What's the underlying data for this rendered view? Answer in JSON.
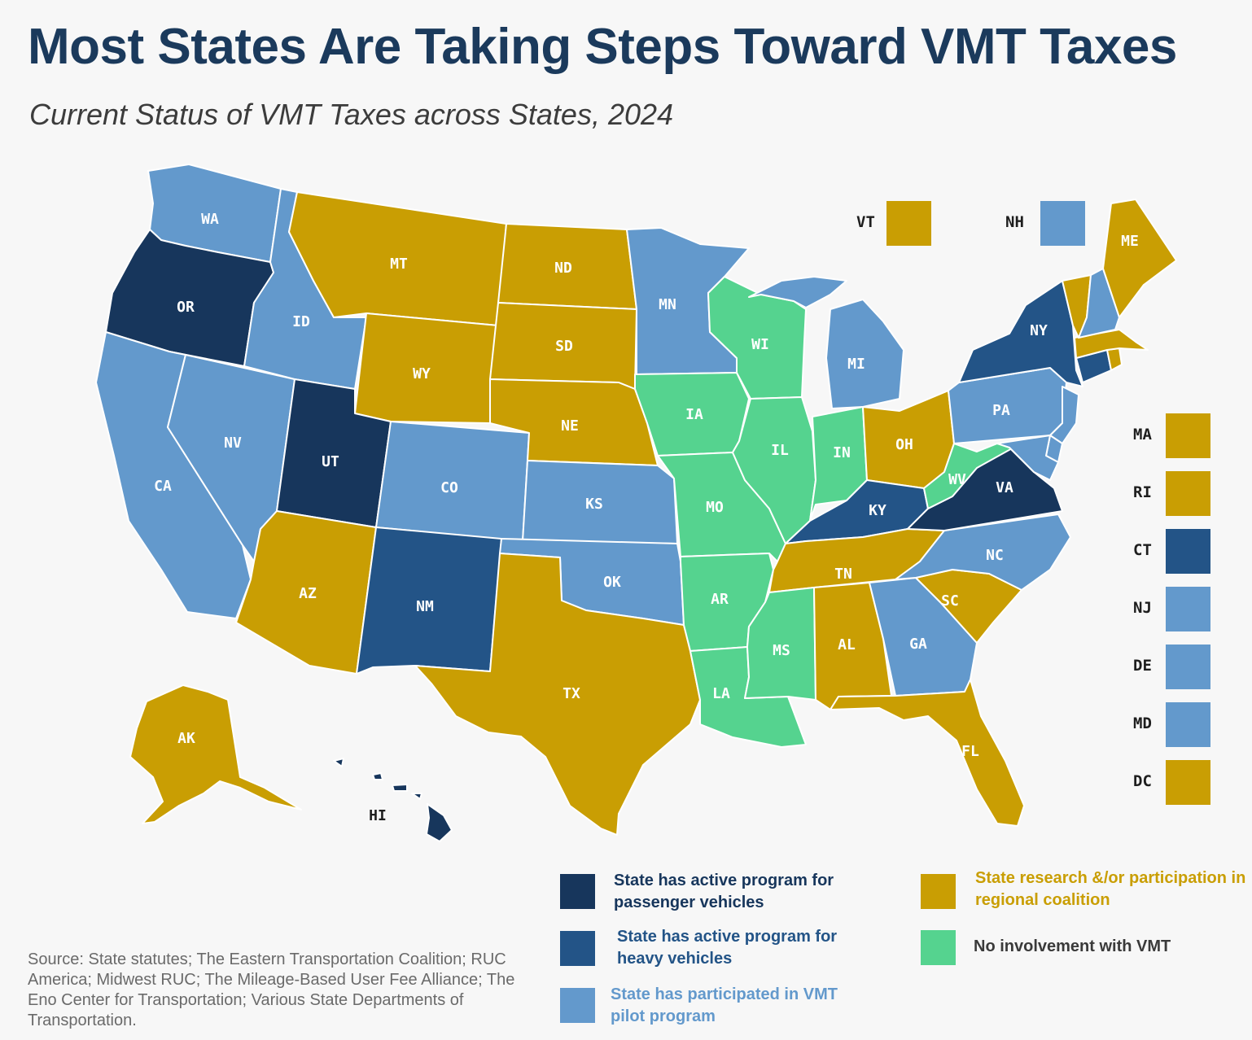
{
  "title": "Most States Are Taking Steps Toward VMT Taxes",
  "subtitle": "Current Status of VMT Taxes across States, 2024",
  "colors": {
    "passenger": "#17365c",
    "heavy": "#235487",
    "pilot": "#6399cc",
    "research": "#c99e03",
    "none": "#55d38f"
  },
  "legend": {
    "passenger": "State has active program for passenger vehicles",
    "heavy": "State has active program for heavy vehicles",
    "pilot": "State has participated in VMT pilot program",
    "research": "State research &/or participation in regional coalition",
    "none": "No involvement with VMT"
  },
  "states": {
    "WA": "pilot",
    "OR": "passenger",
    "CA": "pilot",
    "NV": "pilot",
    "ID": "pilot",
    "MT": "research",
    "WY": "research",
    "UT": "passenger",
    "AZ": "research",
    "CO": "pilot",
    "NM": "heavy",
    "ND": "research",
    "SD": "research",
    "NE": "research",
    "KS": "pilot",
    "OK": "pilot",
    "TX": "research",
    "MN": "pilot",
    "IA": "none",
    "MO": "none",
    "AR": "none",
    "LA": "none",
    "WI": "none",
    "IL": "none",
    "MS": "none",
    "MI": "pilot",
    "IN": "none",
    "KY": "heavy",
    "TN": "research",
    "AL": "research",
    "OH": "research",
    "WV": "none",
    "VA": "passenger",
    "NC": "pilot",
    "SC": "research",
    "GA": "pilot",
    "FL": "research",
    "PA": "pilot",
    "NY": "heavy",
    "ME": "research",
    "AK": "research",
    "HI": "passenger",
    "VT": "research",
    "NH": "pilot",
    "MA": "research",
    "RI": "research",
    "CT": "heavy",
    "NJ": "pilot",
    "DE": "pilot",
    "MD": "pilot",
    "DC": "research"
  },
  "small_states_top": [
    "VT",
    "NH"
  ],
  "small_states_side": [
    "MA",
    "RI",
    "CT",
    "NJ",
    "DE",
    "MD",
    "DC"
  ],
  "source": "Source:  State statutes; The Eastern Transportation Coalition; RUC America; Midwest RUC; The Mileage-Based User Fee Alliance; The Eno Center for Transportation; Various State Departments of Transportation."
}
